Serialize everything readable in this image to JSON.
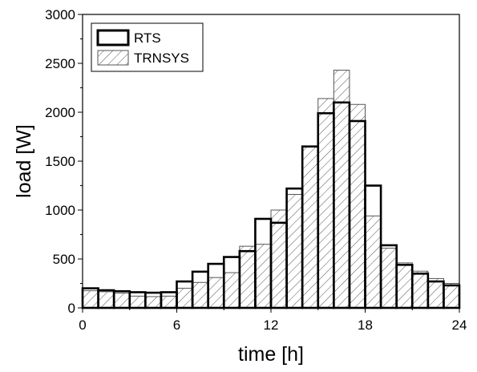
{
  "chart_data": {
    "type": "bar",
    "title": "",
    "xlabel": "time [h]",
    "ylabel": "load [W]",
    "xlim": [
      0,
      24
    ],
    "ylim": [
      0,
      3000
    ],
    "x_ticks": [
      "0",
      "6",
      "12",
      "18",
      "24"
    ],
    "y_ticks": [
      "0",
      "500",
      "1000",
      "1500",
      "2000",
      "2500",
      "3000"
    ],
    "grid": false,
    "legend_position": "top-left",
    "bin_width": 1,
    "x": [
      0,
      1,
      2,
      3,
      4,
      5,
      6,
      7,
      8,
      9,
      10,
      11,
      12,
      13,
      14,
      15,
      16,
      17,
      18,
      19,
      20,
      21,
      22,
      23
    ],
    "series": [
      {
        "name": "RTS",
        "style": "outline",
        "color": "#000000",
        "values": [
          200,
          180,
          170,
          160,
          155,
          160,
          270,
          370,
          450,
          520,
          580,
          910,
          870,
          1220,
          1650,
          1990,
          2100,
          1910,
          1250,
          640,
          440,
          350,
          270,
          230
        ]
      },
      {
        "name": "TRNSYS",
        "style": "hatched",
        "color": "#555555",
        "values": [
          175,
          165,
          150,
          120,
          115,
          120,
          200,
          260,
          310,
          360,
          630,
          650,
          1000,
          1160,
          1650,
          2140,
          2430,
          2080,
          940,
          610,
          460,
          375,
          300,
          250
        ]
      }
    ]
  }
}
